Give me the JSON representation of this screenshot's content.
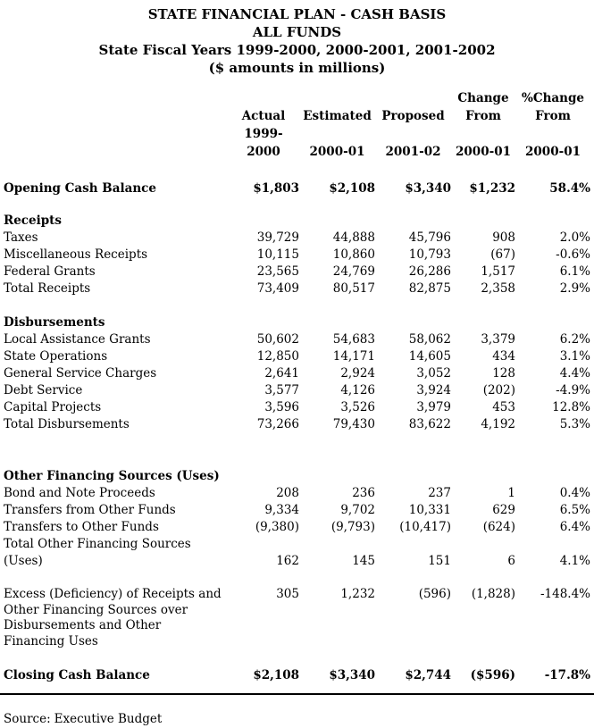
{
  "page": {
    "title_line1": "STATE FINANCIAL PLAN - CASH BASIS",
    "title_line2": "ALL FUNDS",
    "title_line3": "State Fiscal Years 1999-2000, 2000-2001, 2001-2002",
    "title_line4": "($ amounts in millions)"
  },
  "table": {
    "header": {
      "r1": [
        "Change",
        "%Change"
      ],
      "r2": [
        "Actual",
        "Estimated",
        "Proposed",
        "From",
        "From"
      ],
      "r3": [
        "1999-2000",
        "2000-01",
        "2001-02",
        "2000-01",
        "2000-01"
      ]
    },
    "sections": {
      "receipts": "Receipts",
      "disbursements": "Disbursements",
      "other_financing": "Other Financing Sources (Uses)"
    },
    "rows": [
      {
        "label": "Opening Cash Balance",
        "values": [
          "$1,803",
          "$2,108",
          "$3,340",
          "$1,232",
          "58.4%"
        ]
      },
      {
        "label": "Taxes",
        "values": [
          "39,729",
          "44,888",
          "45,796",
          "908",
          "2.0%"
        ]
      },
      {
        "label": "Miscellaneous Receipts",
        "values": [
          "10,115",
          "10,860",
          "10,793",
          "(67)",
          "-0.6%"
        ]
      },
      {
        "label": "Federal Grants",
        "values": [
          "23,565",
          "24,769",
          "26,286",
          "1,517",
          "6.1%"
        ]
      },
      {
        "label": "Total Receipts",
        "values": [
          "73,409",
          "80,517",
          "82,875",
          "2,358",
          "2.9%"
        ]
      },
      {
        "label": "Local Assistance Grants",
        "values": [
          "50,602",
          "54,683",
          "58,062",
          "3,379",
          "6.2%"
        ]
      },
      {
        "label": "State Operations",
        "values": [
          "12,850",
          "14,171",
          "14,605",
          "434",
          "3.1%"
        ]
      },
      {
        "label": "General Service Charges",
        "values": [
          "2,641",
          "2,924",
          "3,052",
          "128",
          "4.4%"
        ]
      },
      {
        "label": "Debt Service",
        "values": [
          "3,577",
          "4,126",
          "3,924",
          "(202)",
          "-4.9%"
        ]
      },
      {
        "label": "Capital Projects",
        "values": [
          "3,596",
          "3,526",
          "3,979",
          "453",
          "12.8%"
        ]
      },
      {
        "label": "Total Disbursements",
        "values": [
          "73,266",
          "79,430",
          "83,622",
          "4,192",
          "5.3%"
        ]
      },
      {
        "label": "Bond and Note Proceeds",
        "values": [
          "208",
          "236",
          "237",
          "1",
          "0.4%"
        ]
      },
      {
        "label": "Transfers from Other Funds",
        "values": [
          "9,334",
          "9,702",
          "10,331",
          "629",
          "6.5%"
        ]
      },
      {
        "label": "Transfers to Other Funds",
        "values": [
          "(9,380)",
          "(9,793)",
          "(10,417)",
          "(624)",
          "6.4%"
        ]
      },
      {
        "label": "Total Other Financing Sources (Uses)",
        "values": [
          "162",
          "145",
          "151",
          "6",
          "4.1%"
        ]
      },
      {
        "label_lines": [
          "Excess (Deficiency) of Receipts and",
          "Other Financing Sources over",
          "Disbursements and Other",
          "Financing Uses"
        ],
        "values": [
          "305",
          "1,232",
          "(596)",
          "(1,828)",
          "-148.4%"
        ]
      },
      {
        "label": "Closing Cash Balance",
        "values": [
          "$2,108",
          "$3,340",
          "$2,744",
          "($596)",
          "-17.8%"
        ]
      }
    ]
  },
  "footer": {
    "source_label": "Source:",
    "source_value": "Executive Budget"
  }
}
